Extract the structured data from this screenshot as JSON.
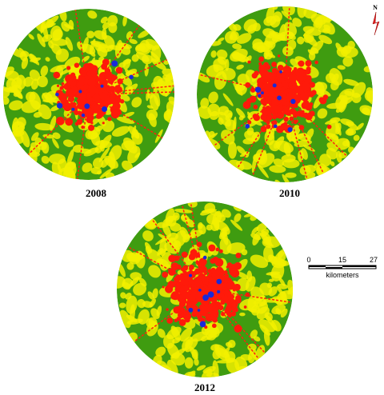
{
  "maps": [
    {
      "label": "2008"
    },
    {
      "label": "2010"
    },
    {
      "label": "2012"
    }
  ],
  "north_arrow": {
    "label": "N"
  },
  "scale_bar": {
    "ticks": [
      "0",
      "15",
      "27"
    ],
    "unit": "kilometers"
  }
}
